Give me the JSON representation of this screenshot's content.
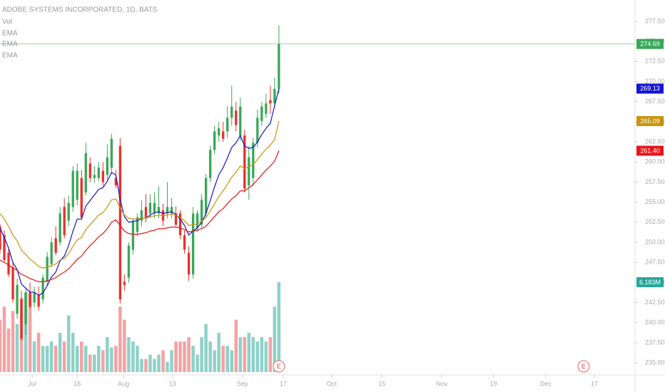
{
  "chart_data": {
    "type": "candlestick",
    "title": "ADOBE SYSTEMS INCORPORATED, 1D, BATS",
    "x": [
      0,
      1,
      2,
      3,
      4,
      5,
      6,
      7,
      8,
      9,
      10,
      11,
      12,
      13,
      14,
      15,
      16,
      17,
      18,
      19,
      20,
      21,
      22,
      23,
      24,
      25,
      26,
      27,
      28,
      29,
      30,
      31,
      32,
      33,
      34,
      35,
      36,
      37,
      38,
      39,
      40,
      41,
      42,
      43,
      44,
      45,
      46,
      47,
      48,
      49,
      50,
      51,
      52,
      53,
      54,
      55,
      56,
      57,
      58,
      59,
      60,
      61,
      62,
      63,
      64,
      65
    ],
    "candles": {
      "up_color": "#3aa757",
      "down_color": "#e8302b",
      "open": [
        252.0,
        250.9,
        248.7,
        246.9,
        241.1,
        242.9,
        239.8,
        243.8,
        242.5,
        243.4,
        242.9,
        245.1,
        247.3,
        250.5,
        250.0,
        254.4,
        252.7,
        254.4,
        255.3,
        258.0,
        256.2,
        259.8,
        258.0,
        258.0,
        258.9,
        258.4,
        259.3,
        258.0,
        262.0,
        245.1,
        245.6,
        249.1,
        251.3,
        252.7,
        254.4,
        253.6,
        253.6,
        253.6,
        254.0,
        253.6,
        253.6,
        253.6,
        253.6,
        250.9,
        248.7,
        246.0,
        251.8,
        252.2,
        253.6,
        258.0,
        261.5,
        263.3,
        263.8,
        263.8,
        265.5,
        266.4,
        263.3,
        263.3,
        257.1,
        258.0,
        262.4,
        265.1,
        266.0,
        267.7,
        267.3,
        269.1
      ],
      "high": [
        252.3,
        251.5,
        249.2,
        247.5,
        245.5,
        244.0,
        244.3,
        245.0,
        244.5,
        244.5,
        246.0,
        248.8,
        250.6,
        252.0,
        254.4,
        255.5,
        255.8,
        259.5,
        259.8,
        259.0,
        262.4,
        260.6,
        259.5,
        260.0,
        260.0,
        262.2,
        263.5,
        259.0,
        263.0,
        246.0,
        250.0,
        253.0,
        253.6,
        255.2,
        256.0,
        256.0,
        256.2,
        257.0,
        254.8,
        257.5,
        255.5,
        254.5,
        254.0,
        251.5,
        249.5,
        254.4,
        254.0,
        256.0,
        258.5,
        262.0,
        264.5,
        265.0,
        265.0,
        267.0,
        269.5,
        267.5,
        268.0,
        264.0,
        262.0,
        263.0,
        266.5,
        267.5,
        268.5,
        269.5,
        270.5,
        277.0
      ],
      "low": [
        248.6,
        247.5,
        245.7,
        242.5,
        240.5,
        237.8,
        238.5,
        241.8,
        241.9,
        241.5,
        242.4,
        244.6,
        246.9,
        248.4,
        249.6,
        250.5,
        252.0,
        253.8,
        254.6,
        252.8,
        255.8,
        257.5,
        257.4,
        257.6,
        257.0,
        257.8,
        258.5,
        256.8,
        242.4,
        244.0,
        245.0,
        248.5,
        250.8,
        252.0,
        252.5,
        253.0,
        253.0,
        253.0,
        252.0,
        253.0,
        253.0,
        252.0,
        250.4,
        248.6,
        245.2,
        245.5,
        251.3,
        251.8,
        253.0,
        257.5,
        261.0,
        262.5,
        262.5,
        263.0,
        264.5,
        263.8,
        262.6,
        256.2,
        255.3,
        257.0,
        261.8,
        264.5,
        265.5,
        266.0,
        266.8,
        268.5
      ],
      "close": [
        249.1,
        247.8,
        246.0,
        242.9,
        244.7,
        238.0,
        243.8,
        242.0,
        243.8,
        242.0,
        245.6,
        248.2,
        250.0,
        248.7,
        253.6,
        250.9,
        254.9,
        258.9,
        258.9,
        253.1,
        261.1,
        258.0,
        258.4,
        259.3,
        257.5,
        260.6,
        262.9,
        257.1,
        242.9,
        244.7,
        249.6,
        252.7,
        253.1,
        254.0,
        253.1,
        254.9,
        254.9,
        254.4,
        252.7,
        254.4,
        254.4,
        252.2,
        250.9,
        249.1,
        246.0,
        253.6,
        253.6,
        255.3,
        258.0,
        261.5,
        263.8,
        264.2,
        262.9,
        265.5,
        266.9,
        264.6,
        266.9,
        256.7,
        260.6,
        262.4,
        265.5,
        266.9,
        267.3,
        267.3,
        269.1,
        274.69
      ],
      "close_label": "274.69"
    },
    "volume": {
      "name": "Vol",
      "up_color": "#8fd1c8",
      "down_color": "#f4a3a3",
      "axis": "y2",
      "values": [
        3.6,
        4.5,
        3.0,
        4.2,
        3.3,
        5.1,
        5.4,
        5.4,
        2.1,
        2.7,
        1.8,
        1.8,
        2.1,
        1.8,
        2.7,
        2.1,
        3.9,
        2.7,
        1.8,
        2.1,
        1.8,
        1.2,
        1.2,
        1.8,
        1.5,
        2.4,
        1.7,
        1.8,
        4.5,
        3.6,
        2.4,
        2.1,
        1.8,
        0.9,
        0.9,
        1.2,
        0.9,
        1.2,
        1.5,
        0.7,
        1.5,
        2.1,
        2.1,
        2.1,
        2.4,
        1.8,
        1.2,
        2.4,
        3.3,
        2.1,
        1.5,
        2.7,
        1.8,
        1.8,
        1.5,
        3.6,
        2.4,
        2.4,
        2.7,
        2.4,
        2.1,
        2.4,
        2.1,
        2.4,
        4.5,
        6.183
      ],
      "last_label": "6.183M",
      "label_color": "#26a69a"
    },
    "series": [
      {
        "name": "EMA",
        "color": "#1515d0",
        "values": [
          251.8,
          250.6,
          249.3,
          247.5,
          246.6,
          244.8,
          244.3,
          243.8,
          243.8,
          243.4,
          243.7,
          244.6,
          245.7,
          246.3,
          247.7,
          248.3,
          249.6,
          251.4,
          252.9,
          252.9,
          254.5,
          255.2,
          255.9,
          256.6,
          256.8,
          257.6,
          258.7,
          258.4,
          255.3,
          253.2,
          252.5,
          252.6,
          252.7,
          253.0,
          253.0,
          253.4,
          253.7,
          253.8,
          253.6,
          253.7,
          253.8,
          253.5,
          252.9,
          252.1,
          250.9,
          251.4,
          251.8,
          252.5,
          253.6,
          255.2,
          256.9,
          258.4,
          259.3,
          260.5,
          261.8,
          262.4,
          263.3,
          262.0,
          261.7,
          261.8,
          262.5,
          263.4,
          264.2,
          264.8,
          267.0,
          269.13
        ],
        "last_label": "269.13"
      },
      {
        "name": "EMA",
        "color": "#c8940c",
        "values": [
          253.6,
          252.9,
          252.0,
          250.9,
          250.2,
          249.0,
          248.5,
          247.9,
          247.5,
          247.0,
          246.8,
          246.9,
          247.1,
          247.3,
          247.8,
          248.0,
          248.6,
          249.5,
          250.3,
          250.6,
          251.6,
          252.2,
          252.8,
          253.4,
          253.7,
          254.4,
          255.3,
          255.4,
          254.3,
          253.4,
          253.0,
          252.9,
          252.9,
          253.0,
          253.0,
          253.2,
          253.3,
          253.4,
          253.3,
          253.4,
          253.5,
          253.4,
          253.1,
          252.7,
          252.1,
          252.2,
          252.3,
          252.6,
          253.1,
          253.9,
          254.8,
          255.7,
          256.4,
          257.2,
          258.1,
          258.7,
          259.5,
          259.2,
          259.4,
          259.7,
          260.3,
          261.0,
          261.6,
          262.1,
          262.8,
          265.09
        ],
        "last_label": "265.09"
      },
      {
        "name": "EMA",
        "color": "#e8151b",
        "values": [
          247.8,
          247.5,
          247.2,
          246.8,
          246.5,
          246.0,
          245.8,
          245.5,
          245.3,
          245.1,
          245.1,
          245.2,
          245.4,
          245.6,
          246.0,
          246.3,
          246.7,
          247.3,
          247.9,
          248.3,
          249.0,
          249.6,
          250.1,
          250.7,
          251.1,
          251.7,
          252.5,
          252.8,
          252.1,
          251.4,
          251.1,
          251.0,
          251.0,
          251.1,
          251.2,
          251.4,
          251.5,
          251.7,
          251.7,
          251.8,
          251.9,
          251.9,
          251.8,
          251.6,
          251.3,
          251.4,
          251.5,
          251.7,
          252.0,
          252.6,
          253.2,
          253.8,
          254.2,
          254.8,
          255.4,
          255.8,
          256.4,
          256.4,
          256.8,
          257.2,
          257.8,
          258.4,
          259.0,
          259.5,
          260.1,
          261.4
        ],
        "last_label": "261.40"
      }
    ],
    "events": [
      {
        "x": 65,
        "label": "E"
      },
      {
        "x": 136,
        "label": "E"
      }
    ],
    "xlim": [
      0,
      148
    ],
    "xticks": [
      {
        "value": 7.5,
        "label": "Jul"
      },
      {
        "value": 18,
        "label": "16"
      },
      {
        "value": 28.8,
        "label": "Aug"
      },
      {
        "value": 40.2,
        "label": "13"
      },
      {
        "value": 56.5,
        "label": "Sep"
      },
      {
        "value": 66,
        "label": "17"
      },
      {
        "value": 77.3,
        "label": "Oct"
      },
      {
        "value": 89,
        "label": "15"
      },
      {
        "value": 103,
        "label": "Nov"
      },
      {
        "value": 115,
        "label": "19"
      },
      {
        "value": 127.2,
        "label": "Dec"
      },
      {
        "value": 138.5,
        "label": "17"
      }
    ],
    "ylim": [
      233.86,
      280.16
    ],
    "yticks": [
      {
        "value": 235,
        "label": "235.00"
      },
      {
        "value": 237.5,
        "label": "237.50"
      },
      {
        "value": 240,
        "label": "240.00"
      },
      {
        "value": 242.5,
        "label": "242.50"
      },
      {
        "value": 245,
        "label": "245.00"
      },
      {
        "value": 247.5,
        "label": "247.50"
      },
      {
        "value": 250,
        "label": "250.00"
      },
      {
        "value": 252.5,
        "label": "252.50"
      },
      {
        "value": 255,
        "label": "255.00"
      },
      {
        "value": 257.5,
        "label": "257.50"
      },
      {
        "value": 260,
        "label": "260.00"
      },
      {
        "value": 262.5,
        "label": "262.50"
      },
      {
        "value": 265,
        "label": "265.00"
      },
      {
        "value": 267.5,
        "label": "267.50"
      },
      {
        "value": 270,
        "label": "270.00"
      },
      {
        "value": 272.5,
        "label": "272.50"
      },
      {
        "value": 275,
        "label": "275.00"
      },
      {
        "value": 277.5,
        "label": "277.50"
      }
    ],
    "y2lim": [
      0,
      25.6
    ]
  }
}
